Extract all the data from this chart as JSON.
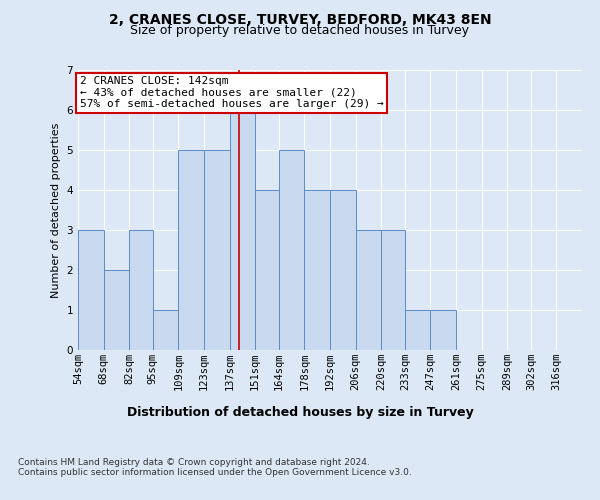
{
  "title_line1": "2, CRANES CLOSE, TURVEY, BEDFORD, MK43 8EN",
  "title_line2": "Size of property relative to detached houses in Turvey",
  "xlabel": "Distribution of detached houses by size in Turvey",
  "ylabel": "Number of detached properties",
  "bar_edges": [
    54,
    68,
    82,
    95,
    109,
    123,
    137,
    151,
    164,
    178,
    192,
    206,
    220,
    233,
    247,
    261,
    275,
    289,
    302,
    316,
    330
  ],
  "bar_heights": [
    3,
    2,
    3,
    1,
    5,
    5,
    6,
    4,
    5,
    4,
    4,
    3,
    3,
    1,
    1,
    0,
    0,
    0,
    0,
    0
  ],
  "bar_color": "#c9d9f0",
  "bar_edgecolor": "#5b8ac5",
  "vline_x": 142,
  "vline_color": "#cc0000",
  "annotation_text": "2 CRANES CLOSE: 142sqm\n← 43% of detached houses are smaller (22)\n57% of semi-detached houses are larger (29) →",
  "annotation_box_color": "#ffffff",
  "annotation_box_edgecolor": "#cc0000",
  "ylim": [
    0,
    7
  ],
  "yticks": [
    0,
    1,
    2,
    3,
    4,
    5,
    6,
    7
  ],
  "footer_text": "Contains HM Land Registry data © Crown copyright and database right 2024.\nContains public sector information licensed under the Open Government Licence v3.0.",
  "bg_color": "#dce8f5",
  "plot_bg_color": "#dce8f5",
  "grid_color": "#ffffff",
  "title_fontsize": 10,
  "subtitle_fontsize": 9,
  "axis_label_fontsize": 8,
  "tick_fontsize": 7.5,
  "footer_fontsize": 6.5,
  "annotation_fontsize": 8
}
